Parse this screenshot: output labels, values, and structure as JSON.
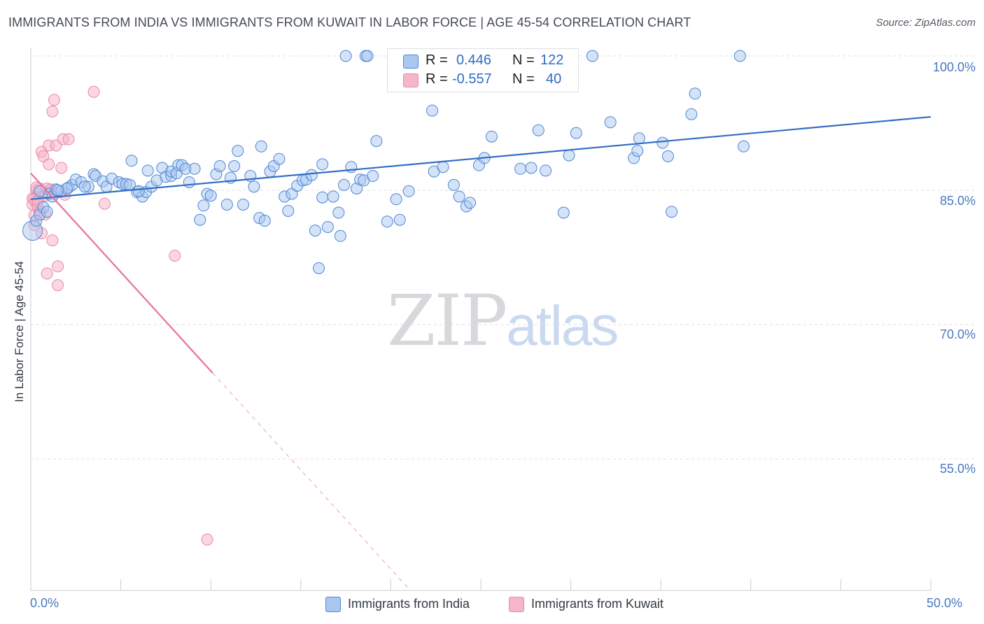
{
  "title": "IMMIGRANTS FROM INDIA VS IMMIGRANTS FROM KUWAIT IN LABOR FORCE | AGE 45-54 CORRELATION CHART",
  "source": "Source: ZipAtlas.com",
  "watermark": {
    "zip": "ZIP",
    "atlas": "atlas"
  },
  "colors": {
    "india_fill": "#aac7ef",
    "india_stroke": "#4f86d6",
    "india_line": "#2f6dc4",
    "kuwait_fill": "#f6b6c9",
    "kuwait_stroke": "#e98aa7",
    "kuwait_line": "#e8739a",
    "axis_text": "#4a78c0",
    "grid": "#dde1e6"
  },
  "legend": {
    "india": {
      "r_label": "R =",
      "r_value": "0.446",
      "n_label": "N =",
      "n_value": "122"
    },
    "kuwait": {
      "r_label": "R =",
      "r_value": "-0.557",
      "n_label": "N =",
      "n_value": "40"
    }
  },
  "chart_data": {
    "type": "scatter",
    "title": "IMMIGRANTS FROM INDIA VS IMMIGRANTS FROM KUWAIT IN LABOR FORCE | AGE 45-54 CORRELATION CHART",
    "xlabel": "",
    "ylabel": "In Labor Force | Age 45-54",
    "xlim": [
      0,
      50
    ],
    "ylim": [
      38.5,
      101.5
    ],
    "x_tick_labels": [
      "0.0%",
      "50.0%"
    ],
    "y_ticks": [
      100,
      85,
      70,
      55
    ],
    "y_tick_labels": [
      "100.0%",
      "85.0%",
      "70.0%",
      "55.0%"
    ],
    "grid": true,
    "legend_position": "bottom",
    "series": [
      {
        "name": "Immigrants from India",
        "r": 0.446,
        "n": 122,
        "trend": {
          "x": [
            0,
            50
          ],
          "y": [
            84.0,
            93.2
          ]
        },
        "points": [
          [
            0.1,
            80.5
          ],
          [
            0.3,
            81.6
          ],
          [
            0.5,
            82.3
          ],
          [
            0.7,
            83.1
          ],
          [
            0.9,
            82.6
          ],
          [
            1.0,
            84.6
          ],
          [
            1.2,
            84.3
          ],
          [
            1.4,
            85.1
          ],
          [
            1.7,
            84.9
          ],
          [
            2.1,
            85.3
          ],
          [
            2.3,
            85.6
          ],
          [
            2.5,
            86.2
          ],
          [
            2.8,
            85.9
          ],
          [
            3.2,
            85.4
          ],
          [
            3.5,
            86.8
          ],
          [
            3.6,
            86.6
          ],
          [
            4.0,
            86.0
          ],
          [
            4.2,
            85.4
          ],
          [
            4.5,
            86.3
          ],
          [
            4.9,
            85.9
          ],
          [
            5.1,
            85.7
          ],
          [
            5.3,
            85.7
          ],
          [
            5.5,
            85.6
          ],
          [
            5.6,
            88.3
          ],
          [
            5.9,
            84.8
          ],
          [
            6.2,
            84.3
          ],
          [
            6.4,
            84.8
          ],
          [
            6.5,
            87.2
          ],
          [
            6.7,
            85.4
          ],
          [
            7.0,
            86.1
          ],
          [
            7.3,
            87.5
          ],
          [
            7.5,
            86.5
          ],
          [
            7.8,
            86.6
          ],
          [
            7.8,
            87.1
          ],
          [
            8.1,
            86.9
          ],
          [
            8.2,
            87.8
          ],
          [
            8.4,
            87.8
          ],
          [
            8.6,
            87.4
          ],
          [
            8.8,
            85.9
          ],
          [
            9.1,
            87.4
          ],
          [
            9.4,
            81.7
          ],
          [
            9.6,
            83.3
          ],
          [
            9.8,
            84.6
          ],
          [
            10.0,
            84.4
          ],
          [
            10.3,
            86.8
          ],
          [
            10.5,
            87.7
          ],
          [
            10.9,
            83.4
          ],
          [
            11.1,
            86.4
          ],
          [
            11.3,
            87.7
          ],
          [
            11.5,
            89.4
          ],
          [
            11.8,
            83.4
          ],
          [
            12.2,
            86.6
          ],
          [
            12.4,
            85.4
          ],
          [
            12.7,
            81.9
          ],
          [
            12.8,
            89.9
          ],
          [
            13.0,
            81.6
          ],
          [
            13.3,
            87.1
          ],
          [
            13.5,
            87.7
          ],
          [
            13.8,
            88.5
          ],
          [
            14.1,
            84.3
          ],
          [
            14.3,
            82.7
          ],
          [
            14.5,
            84.6
          ],
          [
            14.8,
            85.5
          ],
          [
            15.1,
            86.1
          ],
          [
            15.3,
            86.2
          ],
          [
            15.6,
            86.7
          ],
          [
            15.8,
            80.5
          ],
          [
            16.0,
            76.3
          ],
          [
            16.2,
            84.2
          ],
          [
            16.2,
            87.9
          ],
          [
            16.5,
            80.9
          ],
          [
            16.8,
            84.3
          ],
          [
            17.1,
            82.5
          ],
          [
            17.2,
            79.9
          ],
          [
            17.4,
            85.6
          ],
          [
            17.8,
            87.6
          ],
          [
            18.1,
            85.2
          ],
          [
            18.3,
            86.2
          ],
          [
            18.5,
            86.1
          ],
          [
            19.0,
            86.6
          ],
          [
            19.2,
            90.5
          ],
          [
            19.8,
            81.5
          ],
          [
            20.3,
            84.0
          ],
          [
            20.5,
            81.7
          ],
          [
            21.0,
            84.9
          ],
          [
            22.3,
            93.9
          ],
          [
            22.4,
            87.1
          ],
          [
            22.9,
            87.6
          ],
          [
            23.5,
            85.6
          ],
          [
            23.8,
            84.3
          ],
          [
            24.2,
            83.2
          ],
          [
            24.4,
            83.6
          ],
          [
            24.9,
            87.8
          ],
          [
            25.2,
            88.6
          ],
          [
            25.6,
            91.0
          ],
          [
            27.2,
            87.4
          ],
          [
            27.8,
            87.5
          ],
          [
            28.2,
            91.7
          ],
          [
            28.6,
            87.2
          ],
          [
            29.6,
            82.5
          ],
          [
            29.9,
            88.9
          ],
          [
            30.3,
            91.4
          ],
          [
            32.2,
            92.6
          ],
          [
            33.5,
            88.6
          ],
          [
            33.7,
            89.4
          ],
          [
            33.8,
            90.8
          ],
          [
            35.1,
            90.3
          ],
          [
            35.4,
            88.8
          ],
          [
            35.6,
            82.6
          ],
          [
            36.7,
            93.5
          ],
          [
            36.9,
            95.8
          ],
          [
            39.6,
            89.9
          ],
          [
            17.5,
            100.0
          ],
          [
            18.6,
            100.0
          ],
          [
            18.7,
            100.0
          ],
          [
            31.2,
            100.0
          ],
          [
            39.4,
            100.0
          ],
          [
            0.5,
            84.9
          ],
          [
            2.0,
            85.2
          ],
          [
            1.5,
            85.0
          ],
          [
            3.0,
            85.4
          ],
          [
            6.0,
            84.9
          ]
        ]
      },
      {
        "name": "Immigrants from Kuwait",
        "r": -0.557,
        "n": 40,
        "trend": {
          "x": [
            0,
            10.1
          ],
          "y": [
            86.9,
            64.6
          ]
        },
        "trend_dashed": {
          "x": [
            10.1,
            21.0
          ],
          "y": [
            64.6,
            40.5
          ]
        },
        "points": [
          [
            0.1,
            84.1
          ],
          [
            0.1,
            83.4
          ],
          [
            0.2,
            82.2
          ],
          [
            0.2,
            81.1
          ],
          [
            0.3,
            85.0
          ],
          [
            0.3,
            83.6
          ],
          [
            0.4,
            83.1
          ],
          [
            0.4,
            84.6
          ],
          [
            0.5,
            85.2
          ],
          [
            0.5,
            82.6
          ],
          [
            0.6,
            80.2
          ],
          [
            0.6,
            89.3
          ],
          [
            0.7,
            88.8
          ],
          [
            0.8,
            84.4
          ],
          [
            0.9,
            85.2
          ],
          [
            0.9,
            75.7
          ],
          [
            1.0,
            90.0
          ],
          [
            1.0,
            87.9
          ],
          [
            1.1,
            84.9
          ],
          [
            1.1,
            85.1
          ],
          [
            1.2,
            79.4
          ],
          [
            1.2,
            93.8
          ],
          [
            1.3,
            95.1
          ],
          [
            1.3,
            84.6
          ],
          [
            1.4,
            90.0
          ],
          [
            1.5,
            76.5
          ],
          [
            1.5,
            74.4
          ],
          [
            1.7,
            87.5
          ],
          [
            1.8,
            90.7
          ],
          [
            2.1,
            90.7
          ],
          [
            3.5,
            96.0
          ],
          [
            4.1,
            83.5
          ],
          [
            8.0,
            77.7
          ],
          [
            9.8,
            46.0
          ],
          [
            0.2,
            84.0
          ],
          [
            0.4,
            83.8
          ],
          [
            0.8,
            82.3
          ],
          [
            1.6,
            84.8
          ],
          [
            1.9,
            84.5
          ],
          [
            0.3,
            85.3
          ]
        ]
      }
    ]
  },
  "bottom_legend": {
    "india": "Immigrants from India",
    "kuwait": "Immigrants from Kuwait"
  }
}
